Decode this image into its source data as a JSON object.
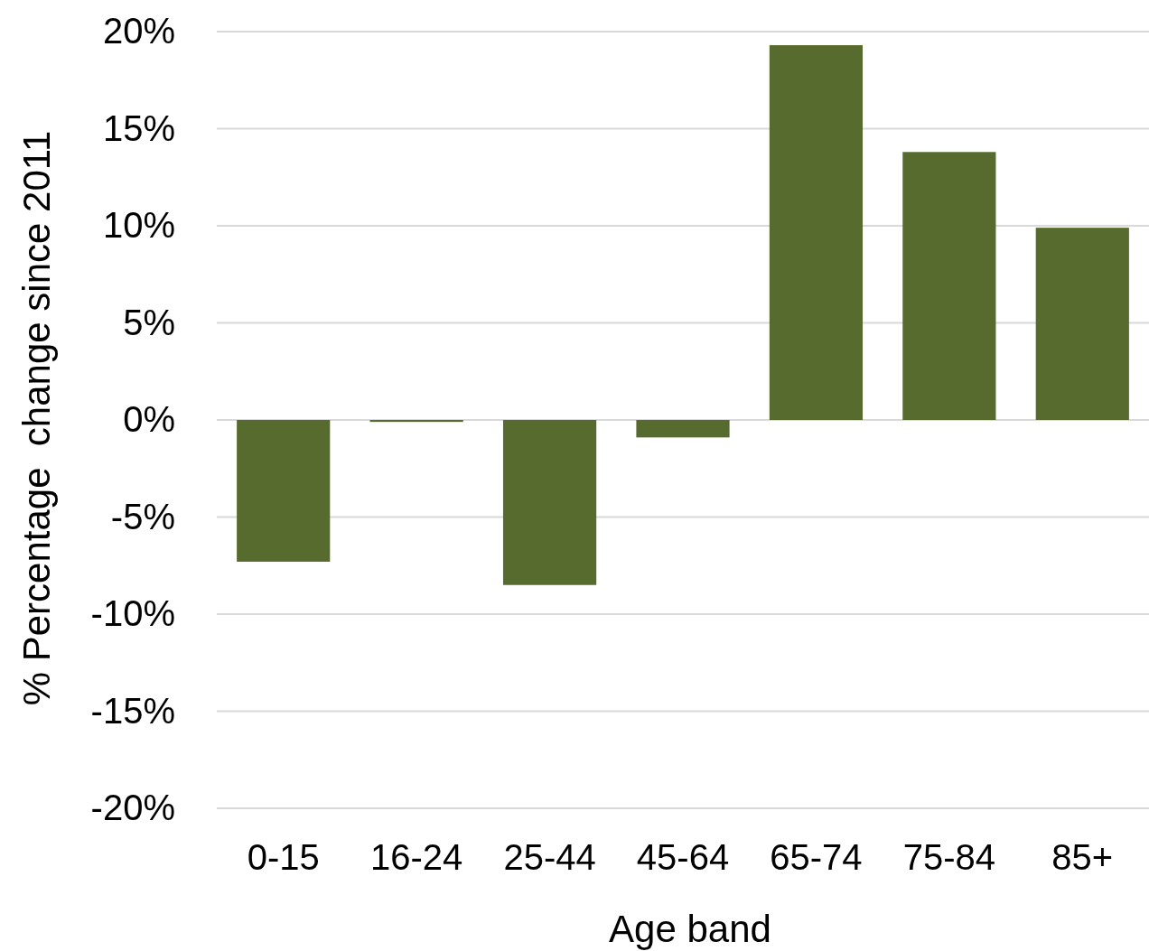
{
  "chart_data": {
    "type": "bar",
    "xlabel": "Age band",
    "ylabel": "% Percentage  change since 2011",
    "categories": [
      "0-15",
      "16-24",
      "25-44",
      "45-64",
      "65-74",
      "75-84",
      "85+"
    ],
    "values": [
      -7.3,
      -0.1,
      -8.5,
      -0.9,
      19.3,
      13.8,
      9.9
    ],
    "color": "#586b2e",
    "ylim": [
      -20,
      20
    ],
    "yticks": [
      {
        "value": -20,
        "label": "-20%"
      },
      {
        "value": -15,
        "label": "-15%"
      },
      {
        "value": -10,
        "label": "-10%"
      },
      {
        "value": -5,
        "label": "-5%"
      },
      {
        "value": 0,
        "label": "0%"
      },
      {
        "value": 5,
        "label": "5%"
      },
      {
        "value": 10,
        "label": "10%"
      },
      {
        "value": 15,
        "label": "15%"
      },
      {
        "value": 20,
        "label": "20%"
      }
    ],
    "grid": "y"
  }
}
